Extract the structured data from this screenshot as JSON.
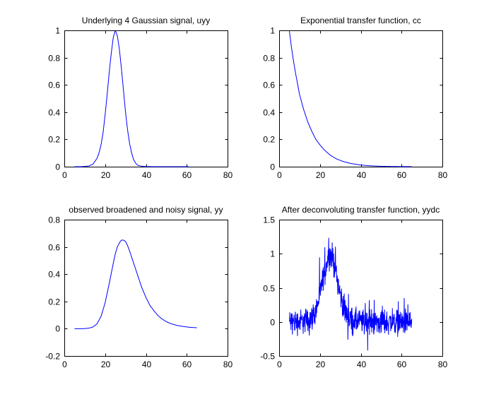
{
  "chart_data": [
    {
      "type": "line",
      "title": "Underlying 4 Gaussian signal, uyy",
      "xlim": [
        0,
        80
      ],
      "ylim": [
        0,
        1
      ],
      "xticks": [
        "0",
        "20",
        "40",
        "60",
        "80"
      ],
      "yticks": [
        "0",
        "0.2",
        "0.4",
        "0.6",
        "0.8",
        "1"
      ],
      "line_color": "#0000ff",
      "series": [
        {
          "x": [
            5,
            8,
            10,
            12,
            14,
            16,
            17,
            18,
            19,
            20,
            21,
            22,
            23,
            24,
            25,
            26,
            27,
            28,
            29,
            30,
            31,
            32,
            33,
            34,
            35,
            36,
            38,
            40,
            44,
            50,
            55,
            60,
            61
          ],
          "y": [
            0,
            0,
            0.002,
            0.005,
            0.018,
            0.06,
            0.1,
            0.16,
            0.25,
            0.38,
            0.53,
            0.69,
            0.83,
            0.95,
            1.0,
            0.96,
            0.86,
            0.72,
            0.56,
            0.4,
            0.27,
            0.17,
            0.1,
            0.05,
            0.025,
            0.01,
            0.003,
            0.001,
            0,
            0,
            0,
            0,
            0
          ]
        }
      ]
    },
    {
      "type": "line",
      "title": "Exponential transfer function, cc",
      "xlim": [
        0,
        80
      ],
      "ylim": [
        0,
        1
      ],
      "xticks": [
        "0",
        "20",
        "40",
        "60",
        "80"
      ],
      "yticks": [
        "0",
        "0.2",
        "0.4",
        "0.6",
        "0.8",
        "1"
      ],
      "line_color": "#0000ff",
      "series": [
        {
          "x": [
            5,
            6,
            7,
            8,
            9,
            10,
            12,
            14,
            16,
            18,
            20,
            22,
            25,
            28,
            31,
            35,
            40,
            45,
            50,
            55,
            60,
            65
          ],
          "y": [
            1.0,
            0.88,
            0.78,
            0.69,
            0.61,
            0.53,
            0.42,
            0.33,
            0.26,
            0.2,
            0.16,
            0.125,
            0.085,
            0.058,
            0.04,
            0.024,
            0.012,
            0.006,
            0.003,
            0.0015,
            0.0007,
            0.0003
          ]
        }
      ]
    },
    {
      "type": "line",
      "title": "observed broadened and noisy signal, yy",
      "xlim": [
        0,
        80
      ],
      "ylim": [
        -0.2,
        0.8
      ],
      "xticks": [
        "0",
        "20",
        "40",
        "60",
        "80"
      ],
      "yticks": [
        "-0.2",
        "0",
        "0.2",
        "0.4",
        "0.6",
        "0.8"
      ],
      "line_color": "#0000ff",
      "series": [
        {
          "x": [
            5,
            8,
            10,
            12,
            14,
            16,
            18,
            20,
            22,
            24,
            25,
            26,
            27,
            28,
            29,
            30,
            31,
            32,
            34,
            36,
            38,
            40,
            42,
            44,
            46,
            48,
            50,
            52,
            55,
            58,
            61,
            65
          ],
          "y": [
            0,
            0,
            0.001,
            0.004,
            0.012,
            0.035,
            0.09,
            0.19,
            0.33,
            0.48,
            0.55,
            0.6,
            0.63,
            0.65,
            0.65,
            0.64,
            0.61,
            0.57,
            0.48,
            0.39,
            0.3,
            0.23,
            0.17,
            0.13,
            0.095,
            0.07,
            0.052,
            0.038,
            0.025,
            0.017,
            0.011,
            0.007
          ]
        }
      ]
    },
    {
      "type": "line",
      "title": "After deconvoluting transfer function, yydc",
      "xlim": [
        0,
        80
      ],
      "ylim": [
        -0.5,
        1.5
      ],
      "xticks": [
        "0",
        "20",
        "40",
        "60",
        "80"
      ],
      "yticks": [
        "-0.5",
        "0",
        "0.5",
        "1",
        "1.5"
      ],
      "line_color": "#0000ff",
      "x_range": [
        5,
        65
      ],
      "noise_amplitude": 0.09,
      "series": [
        {
          "x": [
            5,
            10,
            14,
            16,
            18,
            20,
            22,
            24,
            25,
            26,
            28,
            30,
            32,
            34,
            36,
            40,
            50,
            60,
            65
          ],
          "y": [
            0,
            0,
            0.02,
            0.06,
            0.16,
            0.4,
            0.7,
            0.95,
            1.0,
            0.96,
            0.72,
            0.4,
            0.17,
            0.06,
            0.02,
            0,
            0,
            0,
            0
          ]
        }
      ]
    }
  ]
}
